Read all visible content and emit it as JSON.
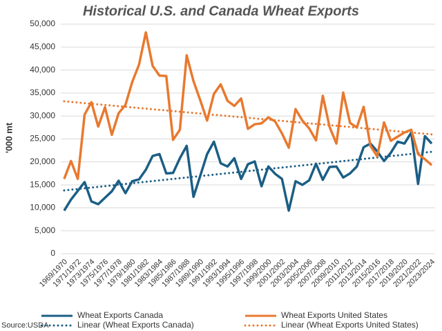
{
  "chart_data": {
    "type": "line",
    "title": "Historical U.S. and Canada Wheat Exports",
    "y_label": "'000 mt",
    "source": "Source:USDA",
    "categories": [
      "1969/1970",
      null,
      "1971/1972",
      null,
      "1973/1974",
      null,
      "1975/1976",
      null,
      "1977/1978",
      null,
      "1979/1980",
      null,
      "1981/1982",
      null,
      "1983/1984",
      null,
      "1985/1986",
      null,
      "1987/1988",
      null,
      "1989/1990",
      null,
      "1991/1992",
      null,
      "1993/1994",
      null,
      "1995/1996",
      null,
      "1997/1998",
      null,
      "1999/2000",
      null,
      "2001/2002",
      null,
      "2003/2004",
      null,
      "2005/2006",
      null,
      "2007/2008",
      null,
      "2009/2010",
      null,
      "2011/2012",
      null,
      "2013/2014",
      null,
      "2015/2016",
      null,
      "2017/2018",
      null,
      "2019/2020",
      null,
      "2021/2022",
      null,
      "2023/2024"
    ],
    "series": [
      {
        "name": "Wheat Exports Canada",
        "color": "#1b5e85",
        "values": [
          9400,
          11800,
          13700,
          15600,
          11400,
          10800,
          12200,
          13600,
          15900,
          13200,
          15800,
          16200,
          18300,
          21300,
          21700,
          17500,
          17600,
          20800,
          23500,
          12400,
          17000,
          21700,
          24400,
          19700,
          19000,
          20800,
          16300,
          19500,
          20100,
          14700,
          19000,
          17400,
          16300,
          9400,
          15800,
          15000,
          16000,
          19600,
          16100,
          18900,
          19000,
          16600,
          17500,
          19000,
          23200,
          24000,
          22300,
          20200,
          22000,
          24400,
          24000,
          26400,
          15200,
          25600,
          24000
        ]
      },
      {
        "name": "Wheat Exports United States",
        "color": "#e8792f",
        "values": [
          16300,
          20200,
          16300,
          30300,
          33000,
          27700,
          31900,
          25900,
          30600,
          32400,
          37400,
          41200,
          48200,
          40900,
          38800,
          38700,
          24800,
          27000,
          43200,
          37600,
          33400,
          29000,
          34800,
          36900,
          33300,
          32200,
          33800,
          27200,
          28200,
          28400,
          29700,
          28800,
          26200,
          23100,
          31500,
          29000,
          27300,
          24700,
          34400,
          27600,
          24000,
          35100,
          28500,
          27500,
          32000,
          23500,
          21200,
          28600,
          24600,
          25500,
          26400,
          27000,
          21700,
          20600,
          19300
        ]
      }
    ],
    "trendlines": [
      {
        "name": "Linear (Wheat Exports Canada)",
        "color": "#1b5e85",
        "start": 13800,
        "end": 22200
      },
      {
        "name": "Linear (Wheat Exports United States)",
        "color": "#e8792f",
        "start": 33200,
        "end": 26000
      }
    ],
    "ylim": [
      0,
      50000
    ],
    "yticks": [
      {
        "value": 0,
        "label": "0"
      },
      {
        "value": 5000,
        "label": "5,000"
      },
      {
        "value": 10000,
        "label": "10,000"
      },
      {
        "value": 15000,
        "label": "15,000"
      },
      {
        "value": 20000,
        "label": "20,000"
      },
      {
        "value": 25000,
        "label": "25,000"
      },
      {
        "value": 30000,
        "label": "30,000"
      },
      {
        "value": 35000,
        "label": "35,000"
      },
      {
        "value": 40000,
        "label": "40,000"
      },
      {
        "value": 45000,
        "label": "45,000"
      },
      {
        "value": 50000,
        "label": "50,000"
      }
    ],
    "grid": true
  }
}
